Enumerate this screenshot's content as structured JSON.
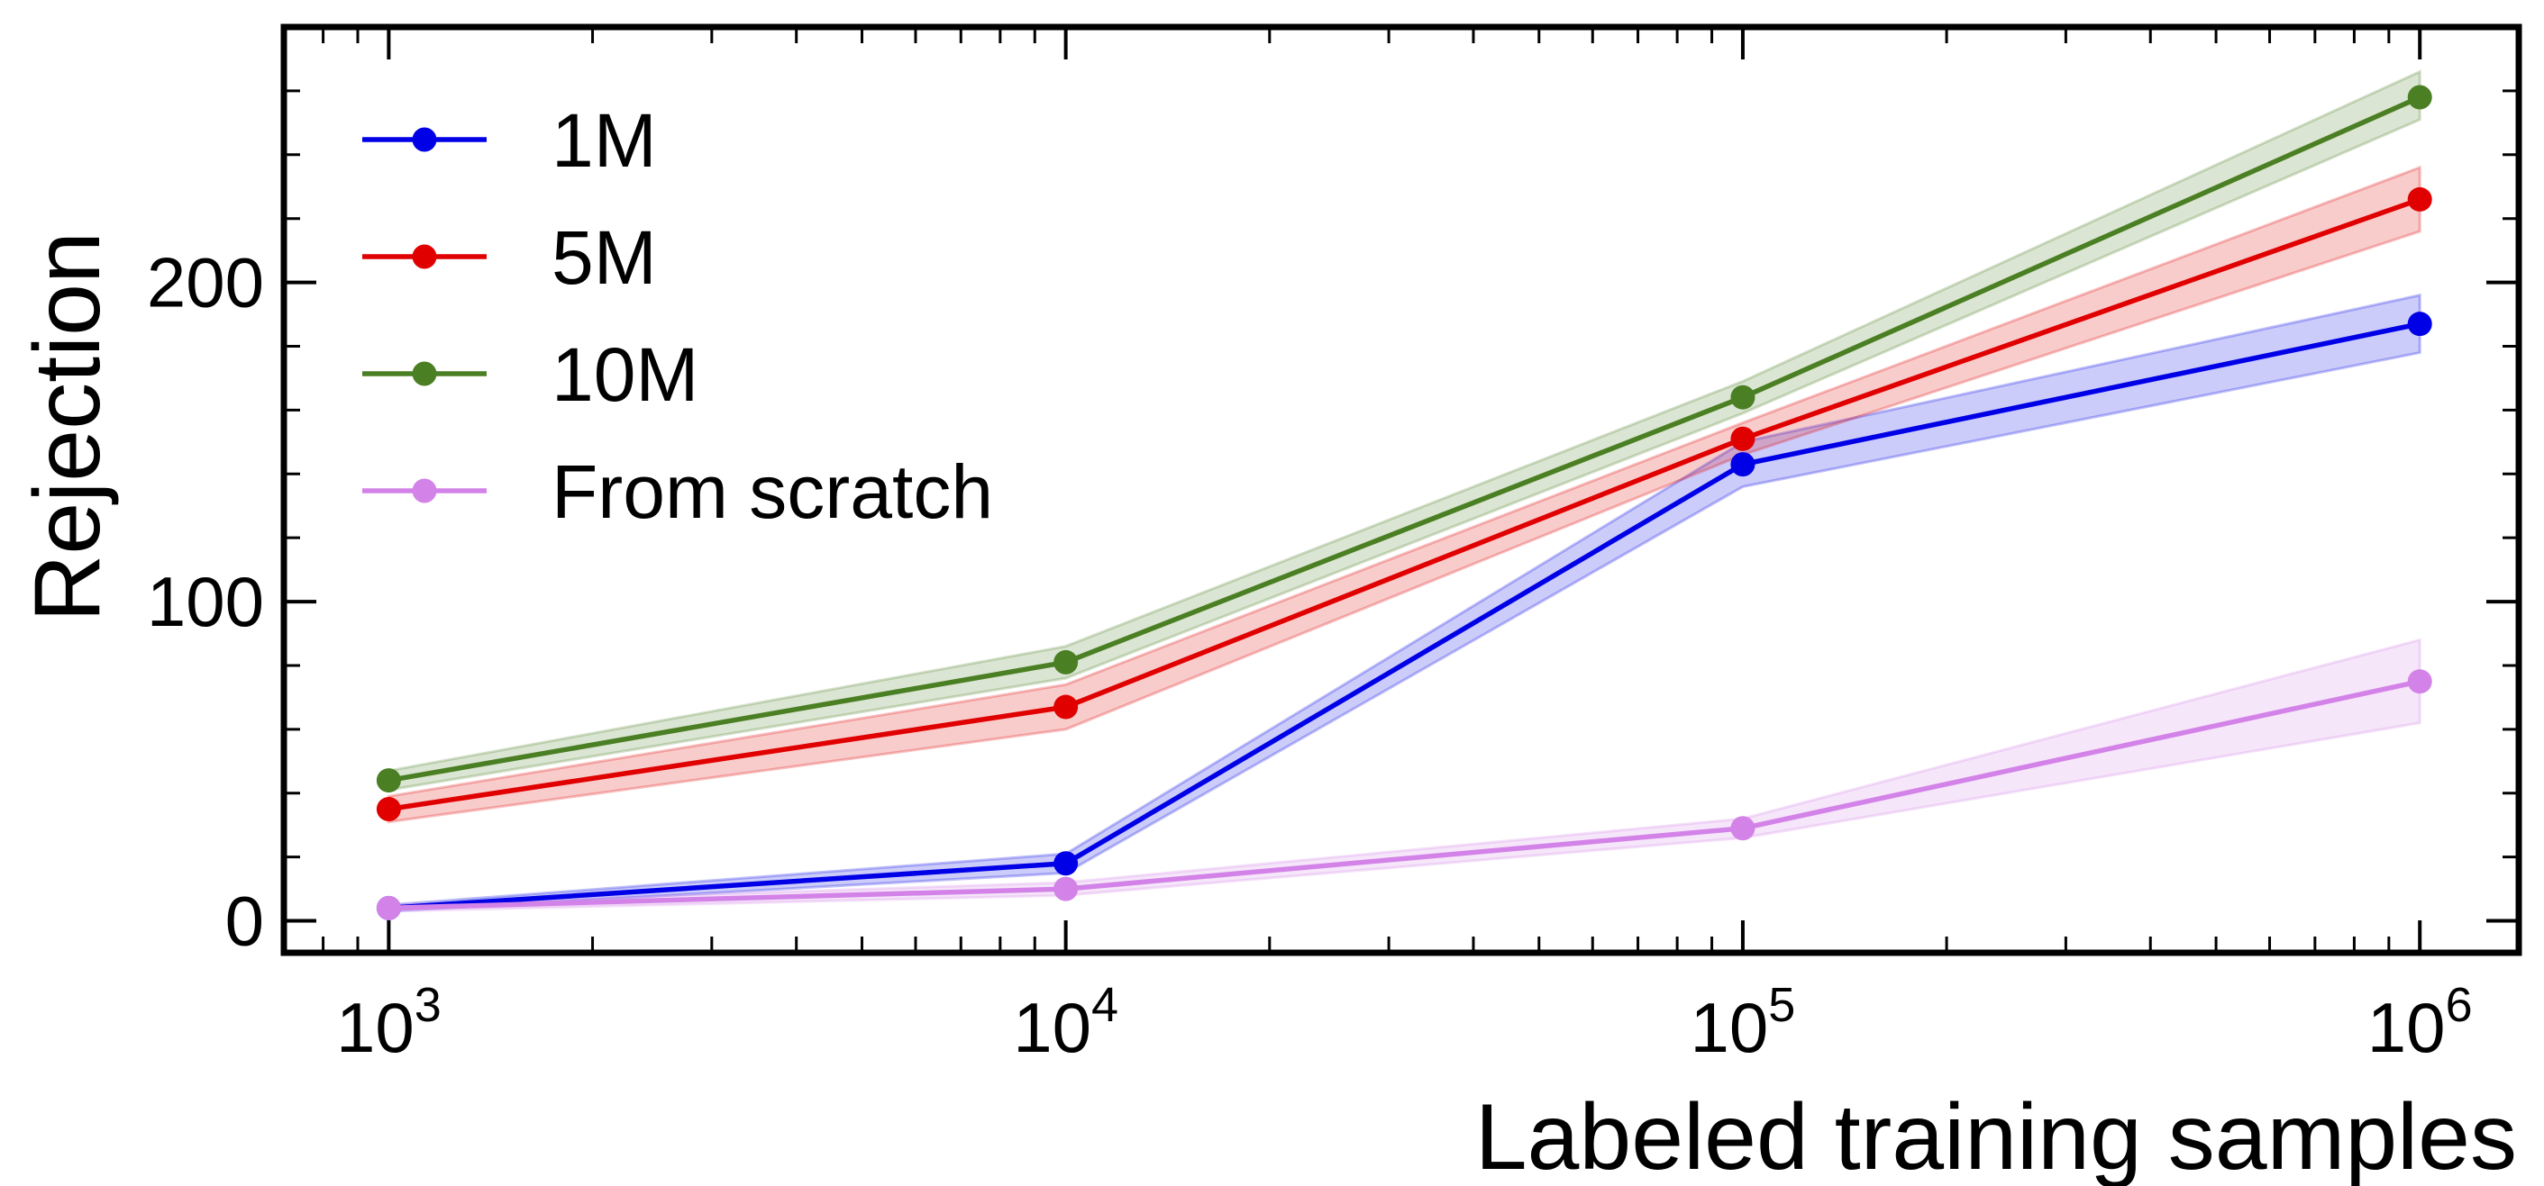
{
  "chart_data": {
    "type": "line",
    "title": "",
    "xlabel": "Labeled training samples",
    "ylabel": "Rejection",
    "xscale": "log",
    "x": [
      1000,
      10000,
      100000,
      1000000
    ],
    "xlim": [
      700,
      1400000
    ],
    "ylim": [
      -10,
      280
    ],
    "xticks": [
      {
        "value": 1000,
        "base": "10",
        "exp": "3"
      },
      {
        "value": 10000,
        "base": "10",
        "exp": "4"
      },
      {
        "value": 100000,
        "base": "10",
        "exp": "5"
      },
      {
        "value": 1000000,
        "base": "10",
        "exp": "6"
      }
    ],
    "yticks": [
      {
        "value": 0,
        "label": "0"
      },
      {
        "value": 100,
        "label": "100"
      },
      {
        "value": 200,
        "label": "200"
      }
    ],
    "grid": false,
    "legend_position": "top-left",
    "series": [
      {
        "name": "1M",
        "color": "#0000e6",
        "values": [
          4,
          18,
          143,
          187
        ],
        "lower": [
          3,
          15,
          136,
          178
        ],
        "upper": [
          5,
          21,
          150,
          196
        ]
      },
      {
        "name": "5M",
        "color": "#e00000",
        "values": [
          35,
          67,
          151,
          226
        ],
        "lower": [
          31,
          60,
          146,
          216
        ],
        "upper": [
          39,
          74,
          156,
          236
        ]
      },
      {
        "name": "10M",
        "color": "#4a7f23",
        "values": [
          44,
          81,
          164,
          258
        ],
        "lower": [
          41,
          76,
          159,
          251
        ],
        "upper": [
          47,
          86,
          169,
          266
        ]
      },
      {
        "name": "From scratch",
        "color": "#d383e8",
        "values": [
          4,
          10,
          29,
          75
        ],
        "lower": [
          3,
          8,
          26,
          62
        ],
        "upper": [
          5,
          12,
          32,
          88
        ]
      }
    ]
  }
}
